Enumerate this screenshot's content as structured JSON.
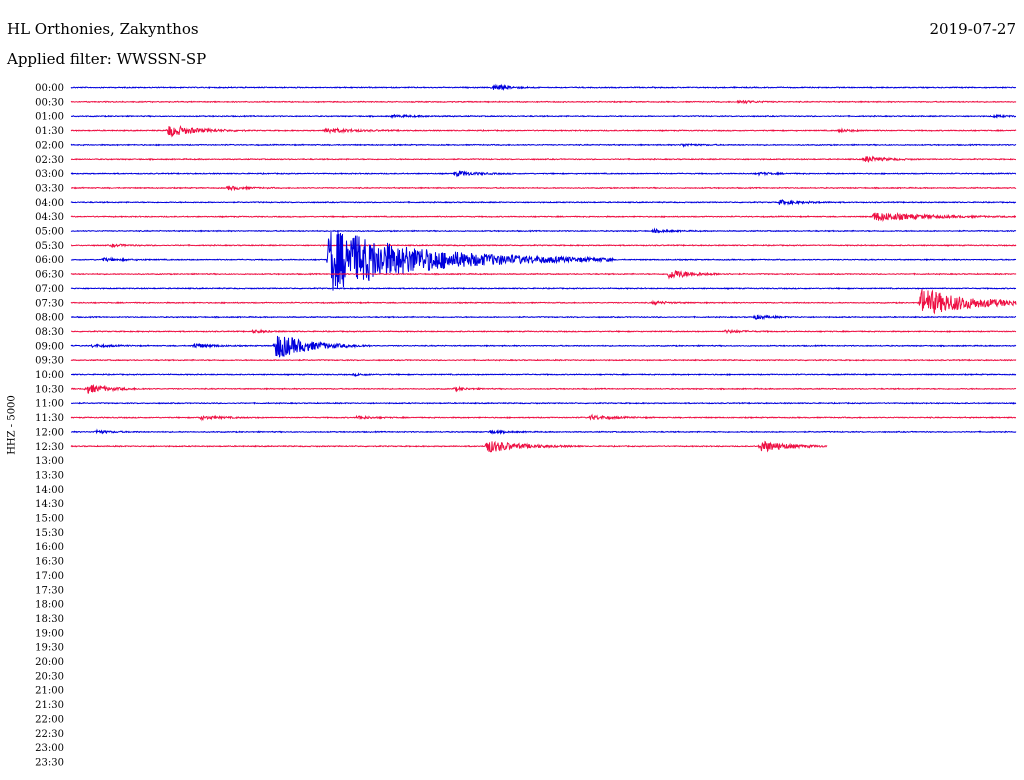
{
  "header": {
    "station": "HL Orthonies, Zakynthos",
    "date": "2019-07-27",
    "filter": "Applied filter: WWSSN-SP"
  },
  "chart_data": {
    "type": "line",
    "title": "HL Orthonies, Zakynthos",
    "ylabel": "HHZ - 5000",
    "row_labels": [
      "00:00",
      "00:30",
      "01:00",
      "01:30",
      "02:00",
      "02:30",
      "03:00",
      "03:30",
      "04:00",
      "04:30",
      "05:00",
      "05:30",
      "06:00",
      "06:30",
      "07:00",
      "07:30",
      "08:00",
      "08:30",
      "09:00",
      "09:30",
      "10:00",
      "10:30",
      "11:00",
      "11:30",
      "12:00",
      "12:30",
      "13:00",
      "13:30",
      "14:00",
      "14:30",
      "15:00",
      "15:30",
      "16:00",
      "16:30",
      "17:00",
      "17:30",
      "18:00",
      "18:30",
      "19:00",
      "19:30",
      "20:00",
      "20:30",
      "21:00",
      "21:30",
      "22:00",
      "22:30",
      "23:00",
      "23:30"
    ],
    "row_minutes": 30,
    "recorded_rows": 26,
    "last_row_fraction": 0.8,
    "colors": {
      "even_row": "#0000dd",
      "odd_row": "#ee1144"
    },
    "events": [
      {
        "row": 0,
        "minute": 13.4,
        "amplitude": 0.6,
        "duration": 1.5
      },
      {
        "row": 1,
        "minute": 21.2,
        "amplitude": 0.3,
        "duration": 1.6
      },
      {
        "row": 2,
        "minute": 10.2,
        "amplitude": 0.2,
        "duration": 2.5
      },
      {
        "row": 2,
        "minute": 29.3,
        "amplitude": 0.2,
        "duration": 1.5
      },
      {
        "row": 3,
        "minute": 3.1,
        "amplitude": 1.2,
        "duration": 2.5
      },
      {
        "row": 3,
        "minute": 8.1,
        "amplitude": 0.5,
        "duration": 2.5
      },
      {
        "row": 3,
        "minute": 24.4,
        "amplitude": 0.25,
        "duration": 1.5
      },
      {
        "row": 4,
        "minute": 19.4,
        "amplitude": 0.25,
        "duration": 1.5
      },
      {
        "row": 5,
        "minute": 25.2,
        "amplitude": 0.6,
        "duration": 1.8
      },
      {
        "row": 6,
        "minute": 12.2,
        "amplitude": 0.5,
        "duration": 2.0
      },
      {
        "row": 6,
        "minute": 21.8,
        "amplitude": 0.25,
        "duration": 1.5
      },
      {
        "row": 7,
        "minute": 5.0,
        "amplitude": 0.4,
        "duration": 1.5
      },
      {
        "row": 8,
        "minute": 22.5,
        "amplitude": 0.45,
        "duration": 2.0
      },
      {
        "row": 9,
        "minute": 25.5,
        "amplitude": 0.9,
        "duration": 4.5
      },
      {
        "row": 10,
        "minute": 18.5,
        "amplitude": 0.3,
        "duration": 1.5
      },
      {
        "row": 11,
        "minute": 1.3,
        "amplitude": 0.25,
        "duration": 1.5
      },
      {
        "row": 12,
        "minute": 1.0,
        "amplitude": 0.3,
        "duration": 2.0
      },
      {
        "row": 12,
        "minute": 8.2,
        "amplitude": 6.5,
        "duration": 9.0
      },
      {
        "row": 13,
        "minute": 19.0,
        "amplitude": 1.0,
        "duration": 2.0
      },
      {
        "row": 15,
        "minute": 18.5,
        "amplitude": 0.3,
        "duration": 1.5
      },
      {
        "row": 15,
        "minute": 27.0,
        "amplitude": 2.8,
        "duration": 5.0
      },
      {
        "row": 16,
        "minute": 21.7,
        "amplitude": 0.4,
        "duration": 1.5
      },
      {
        "row": 17,
        "minute": 5.8,
        "amplitude": 0.3,
        "duration": 1.2
      },
      {
        "row": 17,
        "minute": 20.8,
        "amplitude": 0.3,
        "duration": 1.5
      },
      {
        "row": 18,
        "minute": 0.7,
        "amplitude": 0.3,
        "duration": 1.5
      },
      {
        "row": 18,
        "minute": 3.9,
        "amplitude": 0.5,
        "duration": 1.5
      },
      {
        "row": 18,
        "minute": 6.5,
        "amplitude": 2.7,
        "duration": 3.0
      },
      {
        "row": 20,
        "minute": 9.0,
        "amplitude": 0.2,
        "duration": 1.2
      },
      {
        "row": 21,
        "minute": 0.5,
        "amplitude": 0.9,
        "duration": 2.0
      },
      {
        "row": 21,
        "minute": 12.2,
        "amplitude": 0.3,
        "duration": 1.2
      },
      {
        "row": 23,
        "minute": 4.1,
        "amplitude": 0.35,
        "duration": 2.0
      },
      {
        "row": 23,
        "minute": 9.1,
        "amplitude": 0.3,
        "duration": 1.5
      },
      {
        "row": 23,
        "minute": 16.5,
        "amplitude": 0.45,
        "duration": 2.0
      },
      {
        "row": 24,
        "minute": 0.8,
        "amplitude": 0.3,
        "duration": 1.5
      },
      {
        "row": 24,
        "minute": 13.3,
        "amplitude": 0.3,
        "duration": 1.5
      },
      {
        "row": 25,
        "minute": 13.2,
        "amplitude": 1.3,
        "duration": 3.0
      },
      {
        "row": 25,
        "minute": 21.9,
        "amplitude": 1.2,
        "duration": 2.5
      }
    ]
  }
}
